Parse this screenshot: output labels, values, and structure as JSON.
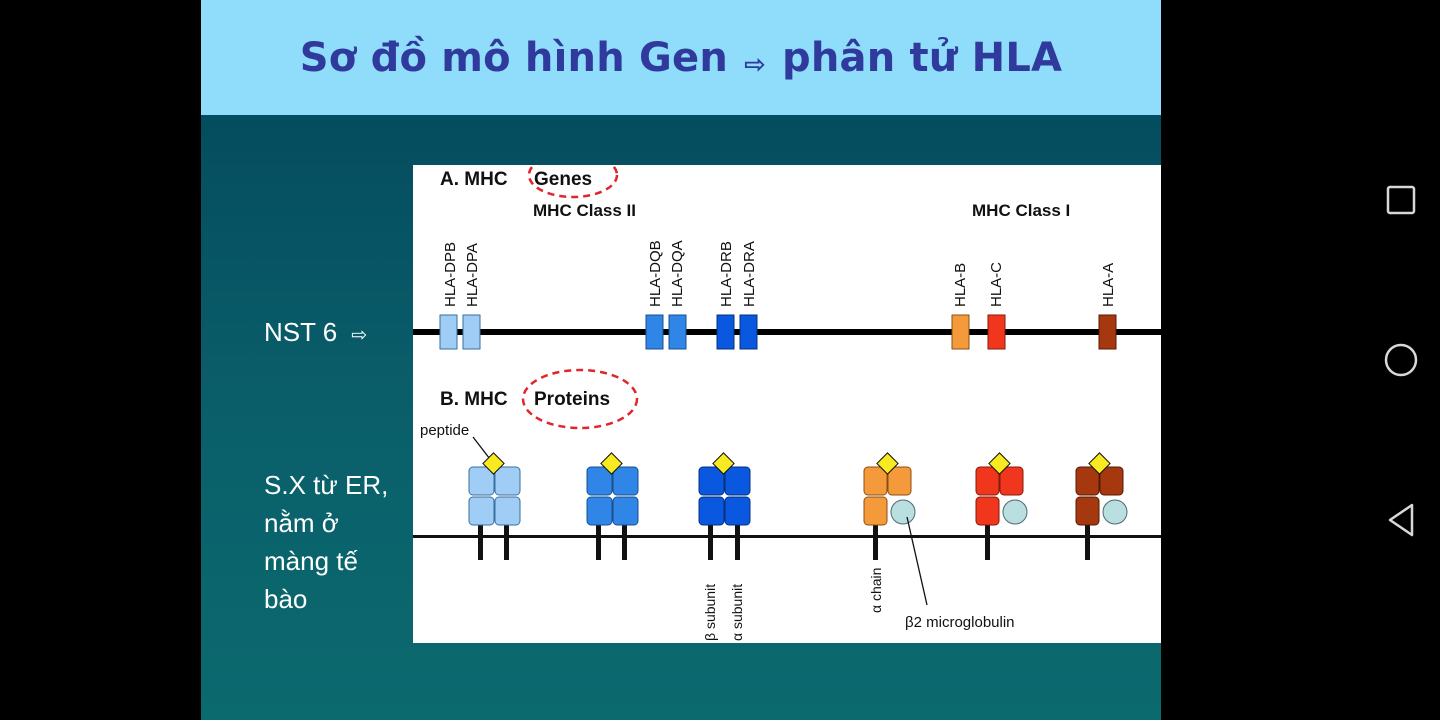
{
  "slide": {
    "title_left": "Sơ đồ mô hình Gen",
    "title_arrow": "⇨",
    "title_right": "phân tử HLA",
    "nst_label": "NST 6",
    "nst_arrow": "⇨",
    "sx_lines": [
      "S.X từ ER,",
      "nằm ở",
      "màng tế",
      "bào"
    ]
  },
  "figure": {
    "section_a_prefix": "A. MHC",
    "section_a_word": "Genes",
    "class_ii_label": "MHC Class II",
    "class_i_label": "MHC Class I",
    "genes": [
      "HLA-DPB",
      "HLA-DPA",
      "HLA-DQB",
      "HLA-DQA",
      "HLA-DRB",
      "HLA-DRA",
      "HLA-B",
      "HLA-C",
      "HLA-A"
    ],
    "section_b_prefix": "B. MHC",
    "section_b_word": "Proteins",
    "peptide_label": "peptide",
    "beta_subunit_label": "β subunit",
    "alpha_subunit_label": "α subunit",
    "alpha_chain_label": "α chain",
    "b2m_label": "β2 microglobulin"
  },
  "colors": {
    "title_bar": "#8fdcfb",
    "title_text": "#2f3a9c",
    "dp": "#9fcdf5",
    "dq": "#2f86e6",
    "dr": "#0b58e0",
    "hla_b": "#f59a3a",
    "hla_c": "#f0361c",
    "hla_a": "#a6380f",
    "peptide": "#f7ea23",
    "b2m": "#b9dfe0",
    "circle_highlight": "#e0262a"
  },
  "nav_icons": [
    "recent-apps-icon",
    "home-icon",
    "back-icon"
  ]
}
